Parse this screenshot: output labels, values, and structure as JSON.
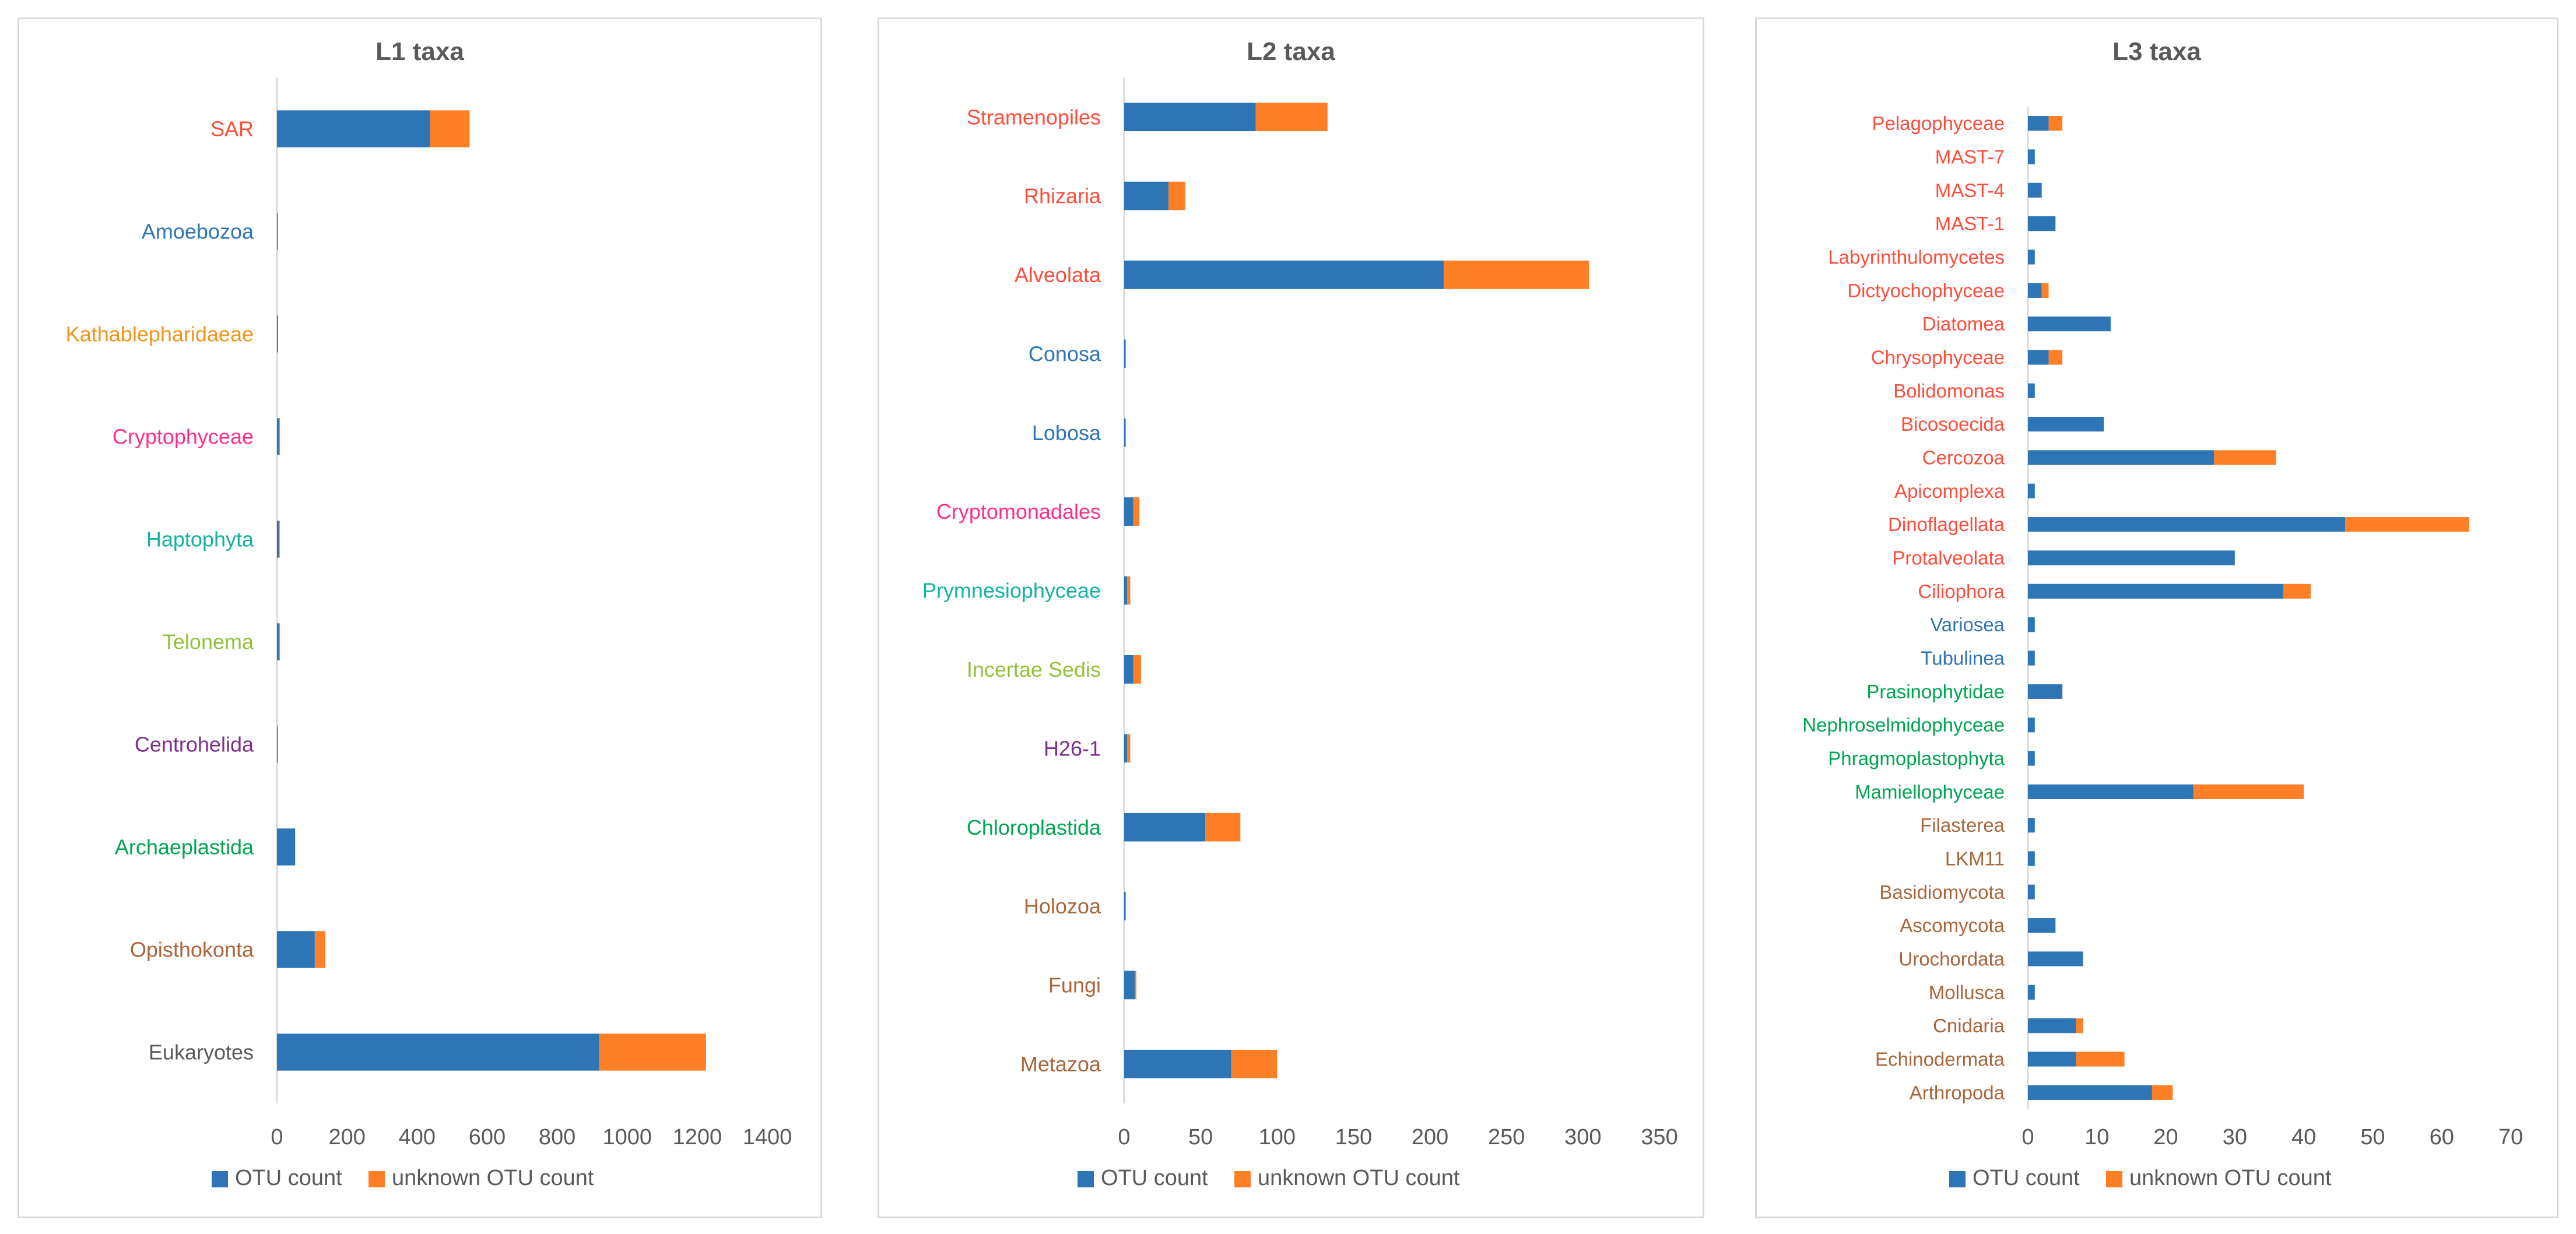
{
  "chart_data": [
    {
      "type": "bar",
      "orientation": "horizontal",
      "stacked": true,
      "title": "L1 taxa",
      "categories": [
        "SAR",
        "Amoebozoa",
        "Kathablepharidaeae",
        "Cryptophyceae",
        "Haptophyta",
        "Telonema",
        "Centrohelida",
        "Archaeplastida",
        "Opisthokonta",
        "Eukaryotes"
      ],
      "category_colors": [
        "#ff4d3a",
        "#2e75b6",
        "#f0941e",
        "#ff2e8a",
        "#12b2a0",
        "#92c13a",
        "#7d2e8f",
        "#00a550",
        "#a9663a",
        "#595959"
      ],
      "series": [
        {
          "name": "OTU count",
          "color": "#2e75b6",
          "values": [
            437,
            2,
            3,
            6,
            5,
            6,
            2,
            52,
            108,
            920
          ]
        },
        {
          "name": "unknown OTU count",
          "color": "#ff7f27",
          "values": [
            113,
            0,
            0,
            2,
            3,
            1,
            0,
            0,
            30,
            305
          ]
        }
      ],
      "xlim": [
        0,
        1400
      ],
      "xticks": [
        0,
        200,
        400,
        600,
        800,
        1000,
        1200,
        1400
      ],
      "legend": "bottom"
    },
    {
      "type": "bar",
      "orientation": "horizontal",
      "stacked": true,
      "title": "L2 taxa",
      "categories": [
        "Stramenopiles",
        "Rhizaria",
        "Alveolata",
        "Conosa",
        "Lobosa",
        "Cryptomonadales",
        "Prymnesiophyceae",
        "Incertae Sedis",
        "H26-1",
        "Chloroplastida",
        "Holozoa",
        "Fungi",
        "Metazoa"
      ],
      "category_colors": [
        "#ff4d3a",
        "#ff4d3a",
        "#ff4d3a",
        "#2e75b6",
        "#2e75b6",
        "#ff2e8a",
        "#12b2a0",
        "#92c13a",
        "#7d2e8f",
        "#00a550",
        "#a9663a",
        "#a9663a",
        "#a9663a"
      ],
      "series": [
        {
          "name": "OTU count",
          "color": "#2e75b6",
          "values": [
            86,
            29,
            209,
            1,
            1,
            6,
            2,
            6,
            2,
            53,
            1,
            7,
            70
          ]
        },
        {
          "name": "unknown OTU count",
          "color": "#ff7f27",
          "values": [
            47,
            11,
            95,
            0,
            0,
            4,
            2,
            5,
            2,
            23,
            0,
            1,
            30
          ]
        }
      ],
      "xlim": [
        0,
        350
      ],
      "xticks": [
        0,
        50,
        100,
        150,
        200,
        250,
        300,
        350
      ],
      "legend": "bottom"
    },
    {
      "type": "bar",
      "orientation": "horizontal",
      "stacked": true,
      "title": "L3 taxa",
      "categories": [
        "Pelagophyceae",
        "MAST-7",
        "MAST-4",
        "MAST-1",
        "Labyrinthulomycetes",
        "Dictyochophyceae",
        "Diatomea",
        "Chrysophyceae",
        "Bolidomonas",
        "Bicosoecida",
        "Cercozoa",
        "Apicomplexa",
        "Dinoflagellata",
        "Protalveolata",
        "Ciliophora",
        "Variosea",
        "Tubulinea",
        "Prasinophytidae",
        "Nephroselmidophyceae",
        "Phragmoplastophyta",
        "Mamiellophyceae",
        "Filasterea",
        "LKM11",
        "Basidiomycota",
        "Ascomycota",
        "Urochordata",
        "Mollusca",
        "Cnidaria",
        "Echinodermata",
        "Arthropoda"
      ],
      "category_colors": [
        "#ff4d3a",
        "#ff4d3a",
        "#ff4d3a",
        "#ff4d3a",
        "#ff4d3a",
        "#ff4d3a",
        "#ff4d3a",
        "#ff4d3a",
        "#ff4d3a",
        "#ff4d3a",
        "#ff4d3a",
        "#ff4d3a",
        "#ff4d3a",
        "#ff4d3a",
        "#ff4d3a",
        "#2e75b6",
        "#2e75b6",
        "#00a550",
        "#00a550",
        "#00a550",
        "#00a550",
        "#a9663a",
        "#a9663a",
        "#a9663a",
        "#a9663a",
        "#a9663a",
        "#a9663a",
        "#a9663a",
        "#a9663a",
        "#a9663a"
      ],
      "series": [
        {
          "name": "OTU count",
          "color": "#2e75b6",
          "values": [
            3,
            1,
            2,
            4,
            1,
            2,
            12,
            3,
            1,
            11,
            27,
            1,
            46,
            30,
            37,
            1,
            1,
            5,
            1,
            1,
            24,
            1,
            1,
            1,
            4,
            8,
            1,
            7,
            7,
            18
          ]
        },
        {
          "name": "unknown OTU count",
          "color": "#ff7f27",
          "values": [
            2,
            0,
            0,
            0,
            0,
            1,
            0,
            2,
            0,
            0,
            9,
            0,
            18,
            0,
            4,
            0,
            0,
            0,
            0,
            0,
            16,
            0,
            0,
            0,
            0,
            0,
            0,
            1,
            7,
            3
          ]
        }
      ],
      "xlim": [
        0,
        70
      ],
      "xticks": [
        0,
        10,
        20,
        30,
        40,
        50,
        60,
        70
      ],
      "legend": "bottom"
    }
  ]
}
